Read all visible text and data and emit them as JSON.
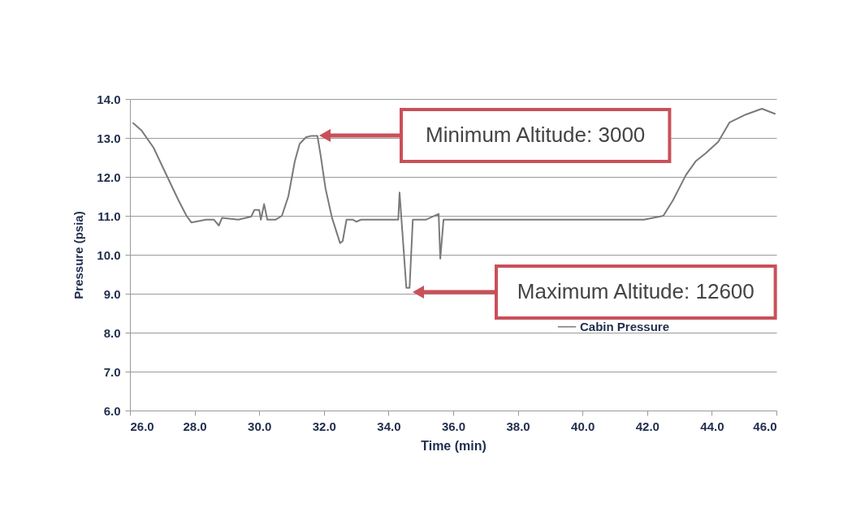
{
  "chart_data": {
    "type": "line",
    "xlabel": "Time (min)",
    "ylabel": "Pressure (psia)",
    "xlim": [
      26,
      46
    ],
    "ylim": [
      6,
      14
    ],
    "xticks": [
      {
        "value": 26,
        "label": "26.0"
      },
      {
        "value": 28,
        "label": "28.0"
      },
      {
        "value": 30,
        "label": "30.0"
      },
      {
        "value": 32,
        "label": "32.0"
      },
      {
        "value": 34,
        "label": "34.0"
      },
      {
        "value": 36,
        "label": "36.0"
      },
      {
        "value": 38,
        "label": "38.0"
      },
      {
        "value": 40,
        "label": "40.0"
      },
      {
        "value": 42,
        "label": "42.0"
      },
      {
        "value": 44,
        "label": "44.0"
      },
      {
        "value": 46,
        "label": "46.0"
      }
    ],
    "yticks": [
      {
        "value": 6,
        "label": "6.0"
      },
      {
        "value": 7,
        "label": "7.0"
      },
      {
        "value": 8,
        "label": "8.0"
      },
      {
        "value": 9,
        "label": "9.0"
      },
      {
        "value": 10,
        "label": "10.0"
      },
      {
        "value": 11,
        "label": "11.0"
      },
      {
        "value": 12,
        "label": "12.0"
      },
      {
        "value": 13,
        "label": "13.0"
      },
      {
        "value": 14,
        "label": "14.0"
      }
    ],
    "grid": "y",
    "legend": "right",
    "line_style": "solid",
    "marker": "none",
    "series": [
      {
        "name": "Cabin Pressure",
        "color": "#7a7a7a",
        "x": [
          26.1,
          26.35,
          26.73,
          27.1,
          27.5,
          27.75,
          27.9,
          28.35,
          28.6,
          28.75,
          28.85,
          29.35,
          29.75,
          29.85,
          30.0,
          30.05,
          30.15,
          30.25,
          30.5,
          30.7,
          30.9,
          31.1,
          31.25,
          31.45,
          31.6,
          31.8,
          31.9,
          32.05,
          32.25,
          32.5,
          32.58,
          32.7,
          32.9,
          33.0,
          33.15,
          34.3,
          34.34,
          34.4,
          34.55,
          34.65,
          34.75,
          35.15,
          35.55,
          35.6,
          35.7,
          36.9,
          41.9,
          42.5,
          42.8,
          43.2,
          43.5,
          43.8,
          44.2,
          44.55,
          45.05,
          45.55,
          45.95
        ],
        "values": [
          13.38,
          13.2,
          12.75,
          12.1,
          11.4,
          11.0,
          10.83,
          10.9,
          10.9,
          10.75,
          10.95,
          10.9,
          10.98,
          11.15,
          11.15,
          10.9,
          11.3,
          10.9,
          10.9,
          11.0,
          11.5,
          12.4,
          12.85,
          13.02,
          13.05,
          13.05,
          12.55,
          11.7,
          10.95,
          10.3,
          10.35,
          10.9,
          10.9,
          10.85,
          10.9,
          10.9,
          11.6,
          10.9,
          9.15,
          9.15,
          10.9,
          10.9,
          11.05,
          9.9,
          10.9,
          10.9,
          10.9,
          11.0,
          11.4,
          12.05,
          12.4,
          12.6,
          12.9,
          13.4,
          13.6,
          13.75,
          13.62
        ]
      }
    ],
    "annotations": [
      "Minimum Altitude: 3000",
      "Maximum Altitude: 12600"
    ]
  }
}
